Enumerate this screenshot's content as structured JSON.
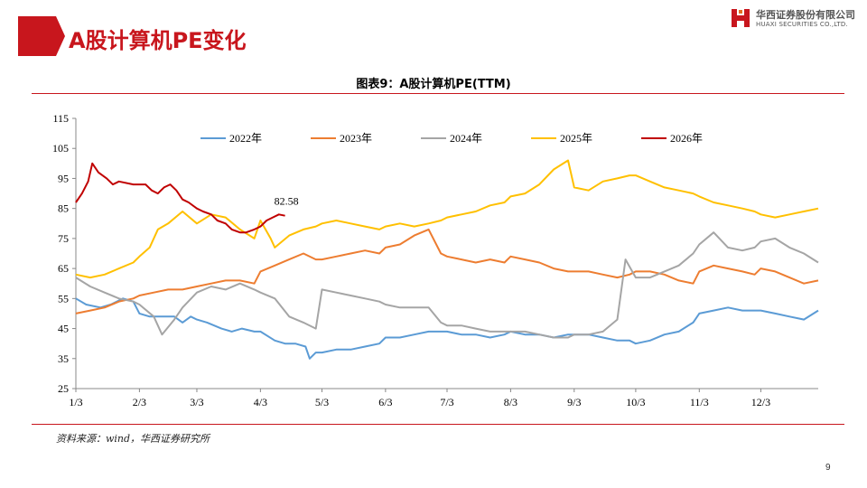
{
  "page": {
    "title": "A股计算机PE变化",
    "page_number": "9",
    "source": "资料来源：wind，华西证券研究所"
  },
  "logo": {
    "name_cn": "华西证券股份有限公司",
    "name_en": "HUAXI SECURITIES CO.,LTD."
  },
  "colors": {
    "accent": "#c8161d"
  },
  "chart_data": {
    "type": "line",
    "title": "图表9：A股计算机PE(TTM)",
    "xlabel": "",
    "ylabel": "",
    "x_ticks": [
      "1/3",
      "2/3",
      "3/3",
      "4/3",
      "5/3",
      "6/3",
      "7/3",
      "8/3",
      "9/3",
      "10/3",
      "11/3",
      "12/3"
    ],
    "y_ticks": [
      25,
      35,
      45,
      55,
      65,
      75,
      85,
      95,
      105,
      115
    ],
    "ylim": [
      25,
      115
    ],
    "grid": false,
    "legend_position": "top",
    "annotations": [
      {
        "text": "82.58",
        "series": "2026年",
        "x": "4/15"
      }
    ],
    "series": [
      {
        "name": "2022年",
        "color": "#5b9bd5",
        "points": [
          [
            "1/3",
            55
          ],
          [
            "1/8",
            53
          ],
          [
            "1/15",
            52
          ],
          [
            "1/20",
            53
          ],
          [
            "1/26",
            55
          ],
          [
            "1/31",
            54
          ],
          [
            "2/3",
            50
          ],
          [
            "2/8",
            49
          ],
          [
            "2/15",
            49
          ],
          [
            "2/20",
            49
          ],
          [
            "2/24",
            47
          ],
          [
            "2/28",
            49
          ],
          [
            "3/3",
            48
          ],
          [
            "3/8",
            47
          ],
          [
            "3/15",
            45
          ],
          [
            "3/20",
            44
          ],
          [
            "3/25",
            45
          ],
          [
            "3/31",
            44
          ],
          [
            "4/3",
            44
          ],
          [
            "4/10",
            41
          ],
          [
            "4/15",
            40
          ],
          [
            "4/20",
            40
          ],
          [
            "4/25",
            39
          ],
          [
            "4/27",
            35
          ],
          [
            "4/30",
            37
          ],
          [
            "5/3",
            37
          ],
          [
            "5/10",
            38
          ],
          [
            "5/17",
            38
          ],
          [
            "5/24",
            39
          ],
          [
            "5/31",
            40
          ],
          [
            "6/3",
            42
          ],
          [
            "6/10",
            42
          ],
          [
            "6/17",
            43
          ],
          [
            "6/24",
            44
          ],
          [
            "6/30",
            44
          ],
          [
            "7/3",
            44
          ],
          [
            "7/10",
            43
          ],
          [
            "7/17",
            43
          ],
          [
            "7/24",
            42
          ],
          [
            "7/31",
            43
          ],
          [
            "8/3",
            44
          ],
          [
            "8/10",
            43
          ],
          [
            "8/17",
            43
          ],
          [
            "8/24",
            42
          ],
          [
            "8/31",
            43
          ],
          [
            "9/3",
            43
          ],
          [
            "9/10",
            43
          ],
          [
            "9/17",
            42
          ],
          [
            "9/24",
            41
          ],
          [
            "9/30",
            41
          ],
          [
            "10/3",
            40
          ],
          [
            "10/10",
            41
          ],
          [
            "10/17",
            43
          ],
          [
            "10/24",
            44
          ],
          [
            "10/31",
            47
          ],
          [
            "11/3",
            50
          ],
          [
            "11/10",
            51
          ],
          [
            "11/17",
            52
          ],
          [
            "11/24",
            51
          ],
          [
            "11/30",
            51
          ],
          [
            "12/3",
            51
          ],
          [
            "12/10",
            50
          ],
          [
            "12/17",
            49
          ],
          [
            "12/24",
            48
          ],
          [
            "12/31",
            51
          ]
        ]
      },
      {
        "name": "2023年",
        "color": "#ed7d31",
        "points": [
          [
            "1/3",
            50
          ],
          [
            "1/10",
            51
          ],
          [
            "1/17",
            52
          ],
          [
            "1/24",
            54
          ],
          [
            "1/31",
            55
          ],
          [
            "2/3",
            56
          ],
          [
            "2/10",
            57
          ],
          [
            "2/17",
            58
          ],
          [
            "2/24",
            58
          ],
          [
            "3/3",
            59
          ],
          [
            "3/10",
            60
          ],
          [
            "3/17",
            61
          ],
          [
            "3/24",
            61
          ],
          [
            "3/31",
            60
          ],
          [
            "4/3",
            64
          ],
          [
            "4/10",
            66
          ],
          [
            "4/17",
            68
          ],
          [
            "4/24",
            70
          ],
          [
            "4/30",
            68
          ],
          [
            "5/3",
            68
          ],
          [
            "5/10",
            69
          ],
          [
            "5/17",
            70
          ],
          [
            "5/24",
            71
          ],
          [
            "5/31",
            70
          ],
          [
            "6/3",
            72
          ],
          [
            "6/10",
            73
          ],
          [
            "6/17",
            76
          ],
          [
            "6/24",
            78
          ],
          [
            "6/30",
            70
          ],
          [
            "7/3",
            69
          ],
          [
            "7/10",
            68
          ],
          [
            "7/17",
            67
          ],
          [
            "7/24",
            68
          ],
          [
            "7/31",
            67
          ],
          [
            "8/3",
            69
          ],
          [
            "8/10",
            68
          ],
          [
            "8/17",
            67
          ],
          [
            "8/24",
            65
          ],
          [
            "8/31",
            64
          ],
          [
            "9/3",
            64
          ],
          [
            "9/10",
            64
          ],
          [
            "9/17",
            63
          ],
          [
            "9/24",
            62
          ],
          [
            "9/30",
            63
          ],
          [
            "10/3",
            64
          ],
          [
            "10/10",
            64
          ],
          [
            "10/17",
            63
          ],
          [
            "10/24",
            61
          ],
          [
            "10/31",
            60
          ],
          [
            "11/3",
            64
          ],
          [
            "11/10",
            66
          ],
          [
            "11/17",
            65
          ],
          [
            "11/24",
            64
          ],
          [
            "11/30",
            63
          ],
          [
            "12/3",
            65
          ],
          [
            "12/10",
            64
          ],
          [
            "12/17",
            62
          ],
          [
            "12/24",
            60
          ],
          [
            "12/31",
            61
          ]
        ]
      },
      {
        "name": "2024年",
        "color": "#a5a5a5",
        "points": [
          [
            "1/3",
            62
          ],
          [
            "1/10",
            59
          ],
          [
            "1/17",
            57
          ],
          [
            "1/24",
            55
          ],
          [
            "1/31",
            54
          ],
          [
            "2/3",
            53
          ],
          [
            "2/10",
            49
          ],
          [
            "2/14",
            43
          ],
          [
            "2/20",
            48
          ],
          [
            "2/24",
            52
          ],
          [
            "3/3",
            57
          ],
          [
            "3/10",
            59
          ],
          [
            "3/17",
            58
          ],
          [
            "3/24",
            60
          ],
          [
            "3/31",
            58
          ],
          [
            "4/3",
            57
          ],
          [
            "4/10",
            55
          ],
          [
            "4/17",
            49
          ],
          [
            "4/24",
            47
          ],
          [
            "4/30",
            45
          ],
          [
            "5/3",
            58
          ],
          [
            "5/10",
            57
          ],
          [
            "5/17",
            56
          ],
          [
            "5/24",
            55
          ],
          [
            "5/31",
            54
          ],
          [
            "6/3",
            53
          ],
          [
            "6/10",
            52
          ],
          [
            "6/17",
            52
          ],
          [
            "6/24",
            52
          ],
          [
            "6/30",
            47
          ],
          [
            "7/3",
            46
          ],
          [
            "7/10",
            46
          ],
          [
            "7/17",
            45
          ],
          [
            "7/24",
            44
          ],
          [
            "7/31",
            44
          ],
          [
            "8/3",
            44
          ],
          [
            "8/10",
            44
          ],
          [
            "8/17",
            43
          ],
          [
            "8/24",
            42
          ],
          [
            "8/31",
            42
          ],
          [
            "9/3",
            43
          ],
          [
            "9/10",
            43
          ],
          [
            "9/17",
            44
          ],
          [
            "9/24",
            48
          ],
          [
            "9/28",
            68
          ],
          [
            "10/3",
            62
          ],
          [
            "10/10",
            62
          ],
          [
            "10/17",
            64
          ],
          [
            "10/24",
            66
          ],
          [
            "10/31",
            70
          ],
          [
            "11/3",
            73
          ],
          [
            "11/10",
            77
          ],
          [
            "11/17",
            72
          ],
          [
            "11/24",
            71
          ],
          [
            "11/30",
            72
          ],
          [
            "12/3",
            74
          ],
          [
            "12/10",
            75
          ],
          [
            "12/17",
            72
          ],
          [
            "12/24",
            70
          ],
          [
            "12/31",
            67
          ]
        ]
      },
      {
        "name": "2025年",
        "color": "#ffc000",
        "points": [
          [
            "1/3",
            63
          ],
          [
            "1/10",
            62
          ],
          [
            "1/17",
            63
          ],
          [
            "1/24",
            65
          ],
          [
            "1/31",
            67
          ],
          [
            "2/3",
            69
          ],
          [
            "2/8",
            72
          ],
          [
            "2/12",
            78
          ],
          [
            "2/17",
            80
          ],
          [
            "2/24",
            84
          ],
          [
            "3/3",
            80
          ],
          [
            "3/10",
            83
          ],
          [
            "3/17",
            82
          ],
          [
            "3/24",
            78
          ],
          [
            "3/31",
            75
          ],
          [
            "4/3",
            81
          ],
          [
            "4/8",
            75
          ],
          [
            "4/10",
            72
          ],
          [
            "4/17",
            76
          ],
          [
            "4/24",
            78
          ],
          [
            "4/30",
            79
          ],
          [
            "5/3",
            80
          ],
          [
            "5/10",
            81
          ],
          [
            "5/17",
            80
          ],
          [
            "5/24",
            79
          ],
          [
            "5/31",
            78
          ],
          [
            "6/3",
            79
          ],
          [
            "6/10",
            80
          ],
          [
            "6/17",
            79
          ],
          [
            "6/24",
            80
          ],
          [
            "6/30",
            81
          ],
          [
            "7/3",
            82
          ],
          [
            "7/10",
            83
          ],
          [
            "7/17",
            84
          ],
          [
            "7/24",
            86
          ],
          [
            "7/31",
            87
          ],
          [
            "8/3",
            89
          ],
          [
            "8/10",
            90
          ],
          [
            "8/17",
            93
          ],
          [
            "8/24",
            98
          ],
          [
            "8/31",
            101
          ],
          [
            "9/3",
            92
          ],
          [
            "9/10",
            91
          ],
          [
            "9/17",
            94
          ],
          [
            "9/24",
            95
          ],
          [
            "9/30",
            96
          ],
          [
            "10/3",
            96
          ],
          [
            "10/10",
            94
          ],
          [
            "10/17",
            92
          ],
          [
            "10/24",
            91
          ],
          [
            "10/31",
            90
          ],
          [
            "11/3",
            89
          ],
          [
            "11/10",
            87
          ],
          [
            "11/17",
            86
          ],
          [
            "11/24",
            85
          ],
          [
            "11/30",
            84
          ],
          [
            "12/3",
            83
          ],
          [
            "12/10",
            82
          ],
          [
            "12/17",
            83
          ],
          [
            "12/24",
            84
          ],
          [
            "12/31",
            85
          ]
        ]
      },
      {
        "name": "2026年",
        "color": "#c00000",
        "points": [
          [
            "1/3",
            87
          ],
          [
            "1/6",
            90
          ],
          [
            "1/9",
            94
          ],
          [
            "1/11",
            100
          ],
          [
            "1/14",
            97
          ],
          [
            "1/18",
            95
          ],
          [
            "1/21",
            93
          ],
          [
            "1/24",
            94
          ],
          [
            "1/31",
            93
          ],
          [
            "2/3",
            93
          ],
          [
            "2/6",
            93
          ],
          [
            "2/9",
            91
          ],
          [
            "2/12",
            90
          ],
          [
            "2/15",
            92
          ],
          [
            "2/18",
            93
          ],
          [
            "2/21",
            91
          ],
          [
            "2/24",
            88
          ],
          [
            "2/27",
            87
          ],
          [
            "3/3",
            85
          ],
          [
            "3/6",
            84
          ],
          [
            "3/10",
            83
          ],
          [
            "3/13",
            81
          ],
          [
            "3/17",
            80
          ],
          [
            "3/20",
            78
          ],
          [
            "3/24",
            77
          ],
          [
            "3/27",
            77
          ],
          [
            "3/31",
            78
          ],
          [
            "4/3",
            79
          ],
          [
            "4/6",
            81
          ],
          [
            "4/9",
            82
          ],
          [
            "4/12",
            83
          ],
          [
            "4/15",
            82.58
          ]
        ]
      }
    ]
  }
}
